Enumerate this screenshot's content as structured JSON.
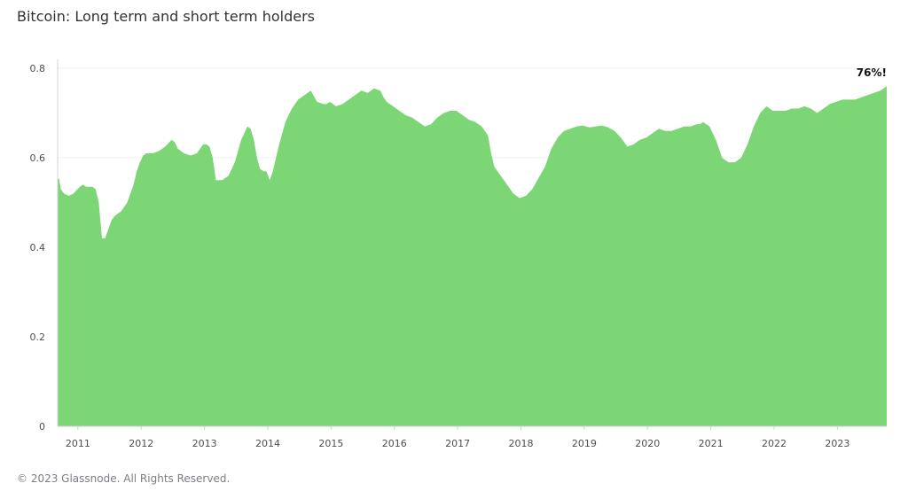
{
  "title": "Bitcoin: Long term and short term holders",
  "footer": "© 2023 Glassnode. All Rights Reserved.",
  "colors": {
    "area": "#7dd676",
    "grid": "#f0f0f0",
    "axis": "#cfd3d8"
  },
  "chart_data": {
    "type": "area",
    "title": "Bitcoin: Long term and short term holders",
    "xlabel": "",
    "ylabel": "",
    "x_ticks": [
      "2011",
      "2012",
      "2013",
      "2014",
      "2015",
      "2016",
      "2017",
      "2018",
      "2019",
      "2020",
      "2021",
      "2022",
      "2023"
    ],
    "y_ticks": [
      "0",
      "0.2",
      "0.4",
      "0.6",
      "0.8"
    ],
    "xlim": [
      2010.7,
      2023.8
    ],
    "ylim": [
      0,
      0.8
    ],
    "grid": true,
    "legend": "none",
    "annotations": [
      {
        "text": "76%!",
        "x": 2023.8,
        "y": 0.76
      }
    ],
    "series": [
      {
        "x": [
          2010.7,
          2010.72,
          2010.75,
          2010.8,
          2010.88,
          2010.95,
          2011.05,
          2011.1,
          2011.15,
          2011.2,
          2011.25,
          2011.3,
          2011.35,
          2011.4,
          2011.45,
          2011.5,
          2011.55,
          2011.6,
          2011.7,
          2011.8,
          2011.9,
          2011.95,
          2012.0,
          2012.05,
          2012.1,
          2012.15,
          2012.2,
          2012.3,
          2012.4,
          2012.5,
          2012.55,
          2012.6,
          2012.7,
          2012.8,
          2012.9,
          2012.95,
          2013.0,
          2013.05,
          2013.1,
          2013.15,
          2013.2,
          2013.25,
          2013.3,
          2013.4,
          2013.5,
          2013.6,
          2013.7,
          2013.75,
          2013.8,
          2013.85,
          2013.9,
          2013.95,
          2014.0,
          2014.05,
          2014.1,
          2014.15,
          2014.2,
          2014.3,
          2014.4,
          2014.5,
          2014.6,
          2014.65,
          2014.7,
          2014.8,
          2014.9,
          2014.95,
          2015.0,
          2015.05,
          2015.1,
          2015.2,
          2015.3,
          2015.4,
          2015.5,
          2015.6,
          2015.7,
          2015.8,
          2015.85,
          2015.9,
          2016.0,
          2016.1,
          2016.2,
          2016.3,
          2016.4,
          2016.5,
          2016.6,
          2016.7,
          2016.8,
          2016.9,
          2017.0,
          2017.05,
          2017.1,
          2017.2,
          2017.3,
          2017.4,
          2017.5,
          2017.55,
          2017.6,
          2017.7,
          2017.8,
          2017.9,
          2018.0,
          2018.1,
          2018.2,
          2018.3,
          2018.4,
          2018.5,
          2018.6,
          2018.7,
          2018.8,
          2018.9,
          2019.0,
          2019.1,
          2019.2,
          2019.3,
          2019.4,
          2019.5,
          2019.6,
          2019.7,
          2019.8,
          2019.9,
          2020.0,
          2020.1,
          2020.2,
          2020.3,
          2020.4,
          2020.5,
          2020.6,
          2020.7,
          2020.8,
          2020.85,
          2020.9,
          2021.0,
          2021.1,
          2021.2,
          2021.3,
          2021.4,
          2021.5,
          2021.6,
          2021.7,
          2021.8,
          2021.9,
          2022.0,
          2022.1,
          2022.2,
          2022.3,
          2022.4,
          2022.5,
          2022.6,
          2022.7,
          2022.8,
          2022.9,
          2023.0,
          2023.1,
          2023.2,
          2023.3,
          2023.4,
          2023.5,
          2023.6,
          2023.7,
          2023.8
        ],
        "y": [
          0.55,
          0.555,
          0.53,
          0.52,
          0.515,
          0.52,
          0.535,
          0.54,
          0.535,
          0.535,
          0.535,
          0.53,
          0.5,
          0.42,
          0.42,
          0.44,
          0.46,
          0.47,
          0.48,
          0.5,
          0.54,
          0.57,
          0.59,
          0.605,
          0.61,
          0.61,
          0.61,
          0.615,
          0.625,
          0.64,
          0.635,
          0.62,
          0.61,
          0.605,
          0.61,
          0.62,
          0.63,
          0.63,
          0.625,
          0.6,
          0.55,
          0.55,
          0.55,
          0.56,
          0.59,
          0.64,
          0.67,
          0.665,
          0.64,
          0.6,
          0.575,
          0.57,
          0.57,
          0.55,
          0.57,
          0.6,
          0.63,
          0.68,
          0.71,
          0.73,
          0.74,
          0.745,
          0.75,
          0.725,
          0.72,
          0.72,
          0.725,
          0.72,
          0.715,
          0.72,
          0.73,
          0.74,
          0.75,
          0.745,
          0.755,
          0.75,
          0.735,
          0.725,
          0.715,
          0.705,
          0.695,
          0.69,
          0.68,
          0.67,
          0.675,
          0.69,
          0.7,
          0.705,
          0.705,
          0.7,
          0.695,
          0.685,
          0.68,
          0.67,
          0.65,
          0.61,
          0.58,
          0.56,
          0.54,
          0.52,
          0.51,
          0.515,
          0.53,
          0.555,
          0.58,
          0.62,
          0.645,
          0.66,
          0.665,
          0.67,
          0.672,
          0.668,
          0.67,
          0.672,
          0.668,
          0.66,
          0.645,
          0.625,
          0.63,
          0.64,
          0.645,
          0.655,
          0.665,
          0.66,
          0.66,
          0.665,
          0.67,
          0.67,
          0.675,
          0.675,
          0.68,
          0.67,
          0.64,
          0.6,
          0.59,
          0.59,
          0.6,
          0.63,
          0.67,
          0.7,
          0.715,
          0.705,
          0.705,
          0.705,
          0.71,
          0.71,
          0.715,
          0.71,
          0.7,
          0.71,
          0.72,
          0.725,
          0.73,
          0.73,
          0.73,
          0.735,
          0.74,
          0.745,
          0.75,
          0.76
        ]
      }
    ]
  }
}
